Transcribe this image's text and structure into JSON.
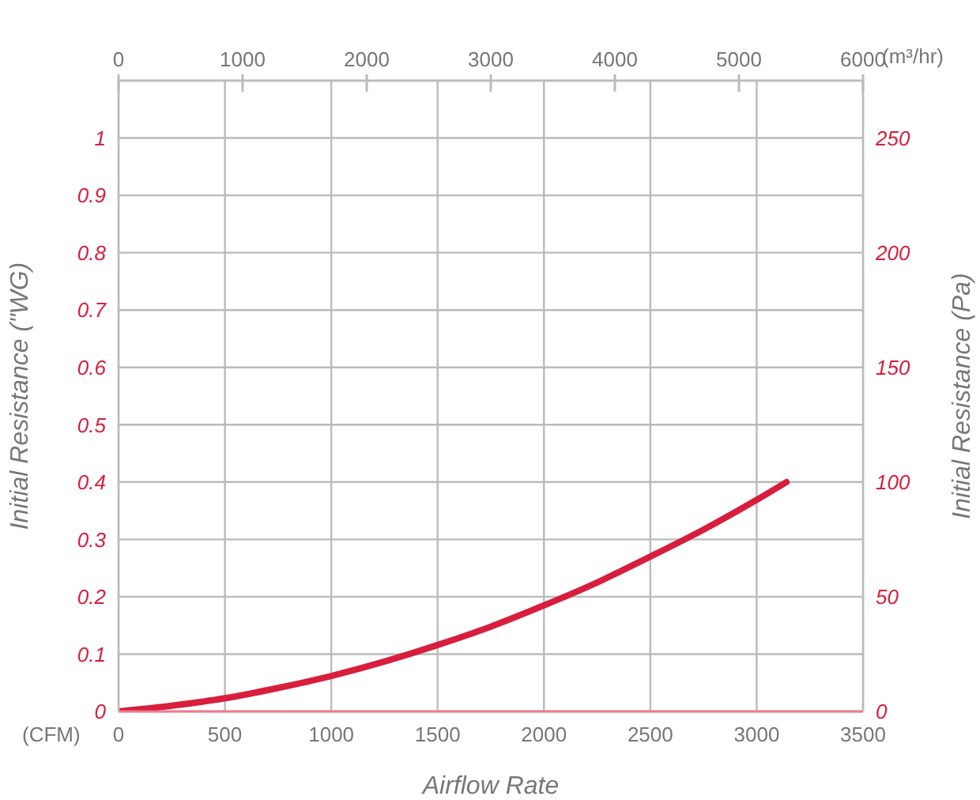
{
  "chart_data": {
    "type": "line",
    "xlabel": "Airflow Rate",
    "ylabel": "Initial Resistance (\"WG)",
    "y2label": "Initial Resistance (Pa)",
    "x2label": "(m³/hr)",
    "annotations": [
      "(CFM)"
    ],
    "series": [
      {
        "color": "#d81e3c",
        "x": [
          0,
          250,
          500,
          750,
          1000,
          1250,
          1500,
          1750,
          2000,
          2250,
          2500,
          2750,
          3000,
          3140
        ],
        "values": [
          0,
          0.01,
          0.023,
          0.041,
          0.062,
          0.087,
          0.116,
          0.148,
          0.185,
          0.225,
          0.27,
          0.317,
          0.369,
          0.4
        ]
      }
    ],
    "xlim": [
      0,
      3500
    ],
    "xticks": [
      0,
      500,
      1000,
      1500,
      2000,
      2500,
      3000,
      3500
    ],
    "x2lim": [
      0,
      6000
    ],
    "x2ticks": [
      0,
      1000,
      2000,
      3000,
      4000,
      5000,
      6000
    ],
    "ylim": [
      0,
      1.1
    ],
    "yticks": [
      0,
      0.1,
      0.2,
      0.3,
      0.4,
      0.5,
      0.6,
      0.7,
      0.8,
      0.9,
      1
    ],
    "y2lim": [
      0,
      275
    ],
    "y2ticks": [
      0,
      50,
      100,
      150,
      200,
      250
    ],
    "grid": true,
    "marker": "none",
    "line_style": "solid",
    "legend": false
  }
}
